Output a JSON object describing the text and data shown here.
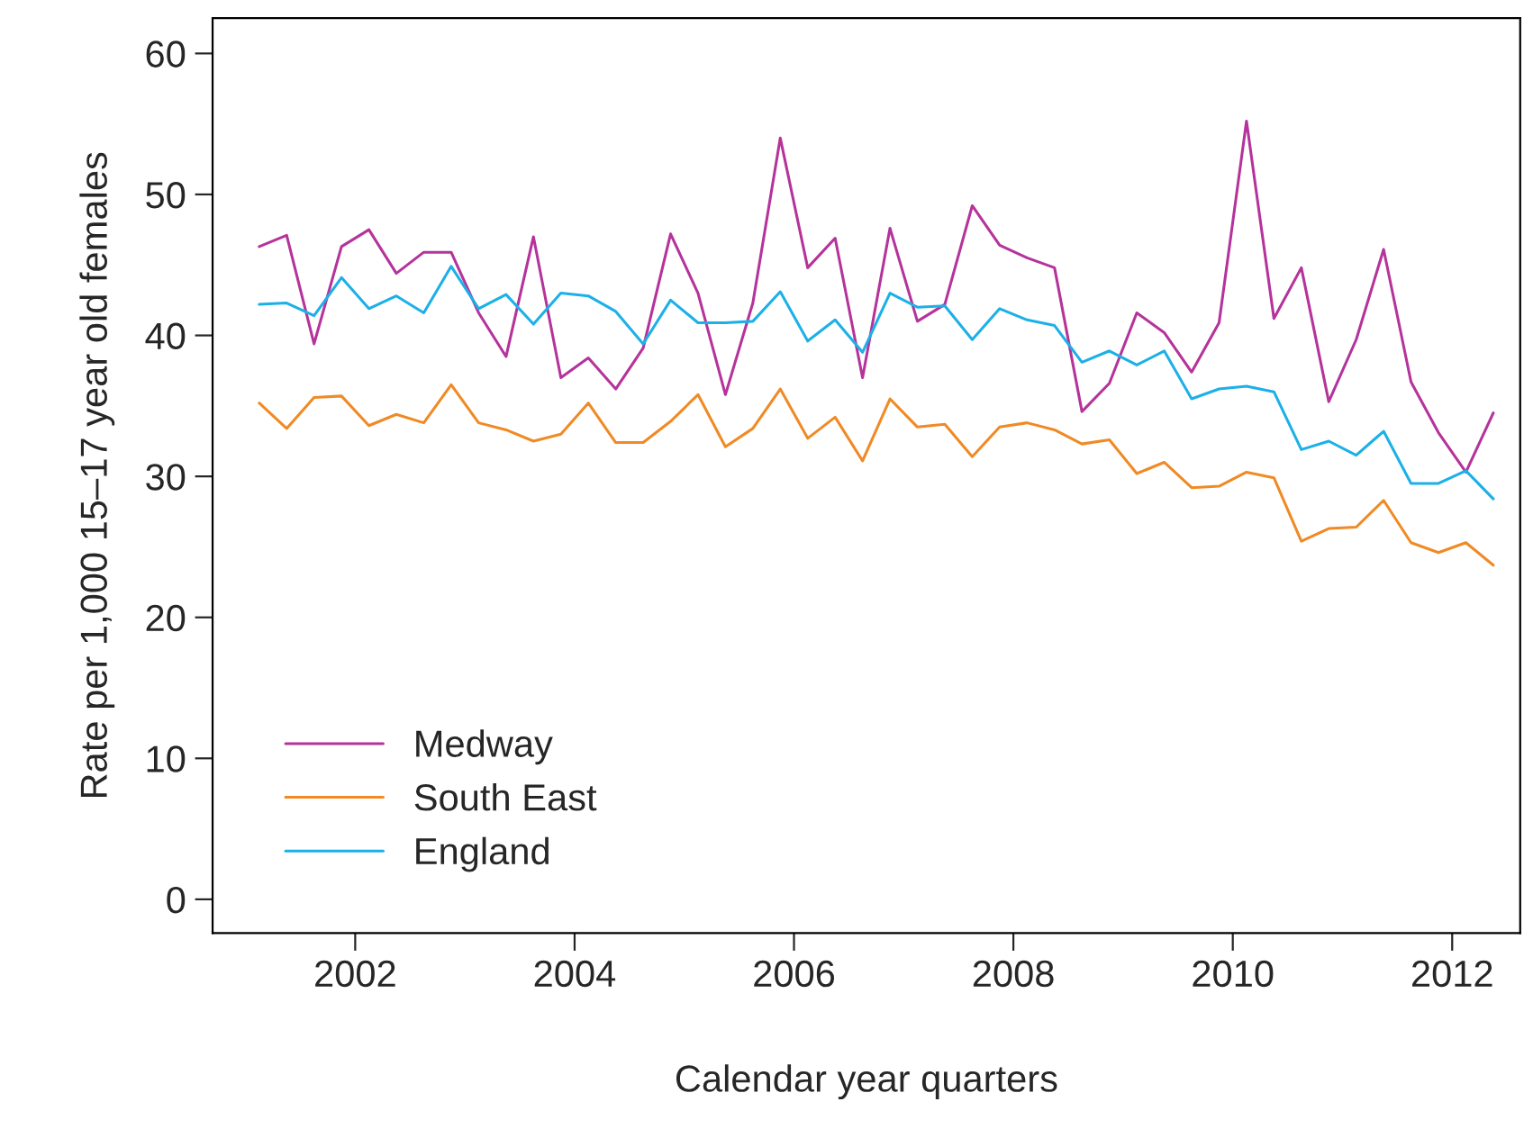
{
  "chart_data": {
    "type": "line",
    "xlabel": "Calendar year quarters",
    "ylabel": "Rate per 1,000 15–17 year old females",
    "x": [
      2001.125,
      2001.375,
      2001.625,
      2001.875,
      2002.125,
      2002.375,
      2002.625,
      2002.875,
      2003.125,
      2003.375,
      2003.625,
      2003.875,
      2004.125,
      2004.375,
      2004.625,
      2004.875,
      2005.125,
      2005.375,
      2005.625,
      2005.875,
      2006.125,
      2006.375,
      2006.625,
      2006.875,
      2007.125,
      2007.375,
      2007.625,
      2007.875,
      2008.125,
      2008.375,
      2008.625,
      2008.875,
      2009.125,
      2009.375,
      2009.625,
      2009.875,
      2010.125,
      2010.375,
      2010.625,
      2010.875,
      2011.125,
      2011.375,
      2011.625,
      2011.875,
      2012.125,
      2012.375
    ],
    "series": [
      {
        "name": "Medway",
        "color": "#b5339b",
        "values": [
          46.3,
          47.1,
          39.4,
          46.3,
          47.5,
          44.4,
          45.9,
          45.9,
          41.6,
          38.5,
          47.0,
          37.0,
          38.4,
          36.2,
          39.1,
          47.2,
          43.0,
          35.8,
          42.3,
          54.0,
          44.8,
          46.9,
          37.0,
          47.6,
          41.0,
          42.2,
          49.2,
          46.4,
          45.5,
          44.8,
          34.6,
          36.6,
          41.6,
          40.2,
          37.4,
          40.9,
          55.2,
          41.2,
          44.8,
          35.3,
          39.7,
          46.1,
          36.7,
          33.1,
          30.3,
          34.5
        ]
      },
      {
        "name": "South East",
        "color": "#f08a24",
        "values": [
          35.2,
          33.4,
          35.6,
          35.7,
          33.6,
          34.4,
          33.8,
          36.5,
          33.8,
          33.3,
          32.5,
          33.0,
          35.2,
          32.4,
          32.4,
          33.9,
          35.8,
          32.1,
          33.4,
          36.2,
          32.7,
          34.2,
          31.1,
          35.5,
          33.5,
          33.7,
          31.4,
          33.5,
          33.8,
          33.3,
          32.3,
          32.6,
          30.2,
          31.0,
          29.2,
          29.3,
          30.3,
          29.9,
          25.4,
          26.3,
          26.4,
          28.3,
          25.3,
          24.6,
          25.3,
          23.7
        ]
      },
      {
        "name": "England",
        "color": "#1cb0e8",
        "values": [
          42.2,
          42.3,
          41.4,
          44.1,
          41.9,
          42.8,
          41.6,
          44.9,
          41.9,
          42.9,
          40.8,
          43.0,
          42.8,
          41.7,
          39.4,
          42.5,
          40.9,
          40.9,
          41.0,
          43.1,
          39.6,
          41.1,
          38.8,
          43.0,
          42.0,
          42.1,
          39.7,
          41.9,
          41.1,
          40.7,
          38.1,
          38.9,
          37.9,
          38.9,
          35.5,
          36.2,
          36.4,
          36.0,
          31.9,
          32.5,
          31.5,
          33.2,
          29.5,
          29.5,
          30.4,
          28.4
        ]
      }
    ],
    "xlim": [
      2000.7,
      2012.62
    ],
    "ylim": [
      -2.4,
      62.5
    ],
    "xticks": [
      2002,
      2004,
      2006,
      2008,
      2010,
      2012
    ],
    "yticks": [
      0,
      10,
      20,
      30,
      40,
      50,
      60
    ],
    "grid": false,
    "legend": "bottom left",
    "marker": "none",
    "line_style": "solid"
  }
}
